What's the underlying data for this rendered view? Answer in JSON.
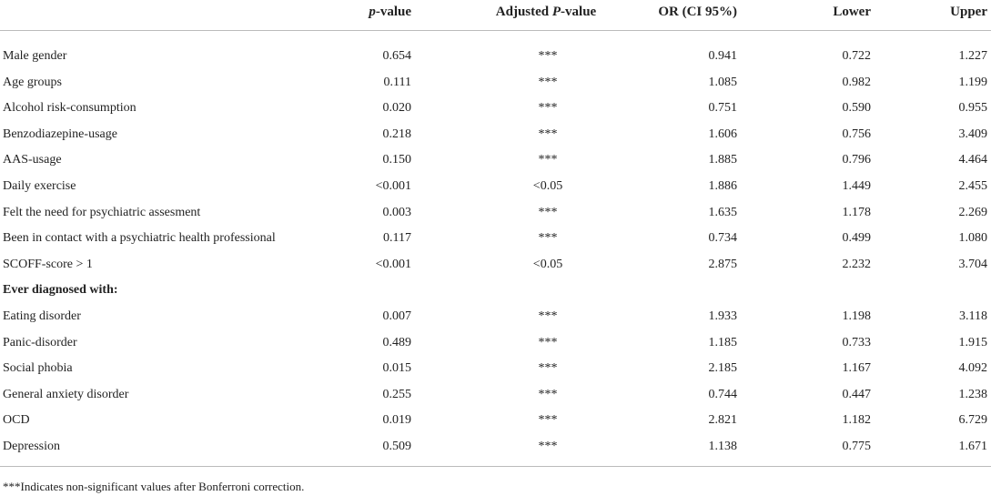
{
  "table": {
    "columns": [
      [
        "p",
        "-value"
      ],
      [
        "Adjusted ",
        "P",
        "-value"
      ],
      [
        "OR (CI 95%)"
      ],
      [
        "Lower"
      ],
      [
        "Upper"
      ]
    ],
    "rows": [
      [
        "Male gender",
        "0.654",
        "***",
        "0.941",
        "0.722",
        "1.227"
      ],
      [
        "Age groups",
        "0.111",
        "***",
        "1.085",
        "0.982",
        "1.199"
      ],
      [
        "Alcohol risk-consumption",
        "0.020",
        "***",
        "0.751",
        "0.590",
        "0.955"
      ],
      [
        "Benzodiazepine-usage",
        "0.218",
        "***",
        "1.606",
        "0.756",
        "3.409"
      ],
      [
        "AAS-usage",
        "0.150",
        "***",
        "1.885",
        "0.796",
        "4.464"
      ],
      [
        "Daily exercise",
        "<0.001",
        "<0.05",
        "1.886",
        "1.449",
        "2.455"
      ],
      [
        "Felt the need for psychiatric assesment",
        "0.003",
        "***",
        "1.635",
        "1.178",
        "2.269"
      ],
      [
        "Been in contact with a psychiatric health professional",
        "0.117",
        "***",
        "0.734",
        "0.499",
        "1.080"
      ],
      [
        "SCOFF-score > 1",
        "<0.001",
        "<0.05",
        "2.875",
        "2.232",
        "3.704"
      ],
      [
        "Ever diagnosed with:"
      ],
      [
        "Eating disorder",
        "0.007",
        "***",
        "1.933",
        "1.198",
        "3.118"
      ],
      [
        "Panic-disorder",
        "0.489",
        "***",
        "1.185",
        "0.733",
        "1.915"
      ],
      [
        "Social phobia",
        "0.015",
        "***",
        "2.185",
        "1.167",
        "4.092"
      ],
      [
        "General anxiety disorder",
        "0.255",
        "***",
        "0.744",
        "0.447",
        "1.238"
      ],
      [
        "OCD",
        "0.019",
        "***",
        "2.821",
        "1.182",
        "6.729"
      ],
      [
        "Depression",
        "0.509",
        "***",
        "1.138",
        "0.775",
        "1.671"
      ]
    ],
    "footnote": "***Indicates non-significant values after Bonferroni correction."
  }
}
